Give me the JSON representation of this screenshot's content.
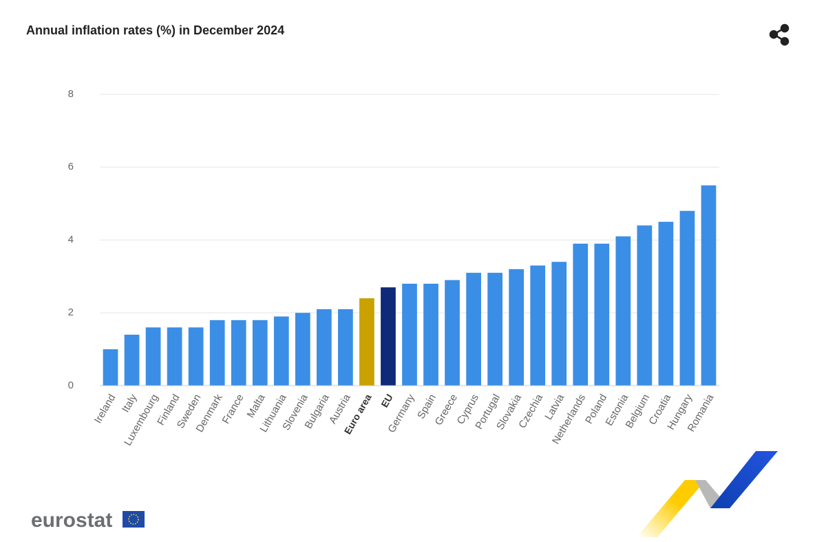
{
  "chart_data": {
    "type": "bar",
    "title": "Annual inflation rates (%) in December 2024",
    "categories": [
      "Ireland",
      "Italy",
      "Luxembourg",
      "Finland",
      "Sweden",
      "Denmark",
      "France",
      "Malta",
      "Lithuania",
      "Slovenia",
      "Bulgaria",
      "Austria",
      "Euro area",
      "EU",
      "Germany",
      "Spain",
      "Greece",
      "Cyprus",
      "Portugal",
      "Slovakia",
      "Czechia",
      "Latvia",
      "Netherlands",
      "Poland",
      "Estonia",
      "Belgium",
      "Croatia",
      "Hungary",
      "Romania"
    ],
    "values": [
      1.0,
      1.4,
      1.6,
      1.6,
      1.6,
      1.8,
      1.8,
      1.8,
      1.9,
      2.0,
      2.1,
      2.1,
      2.4,
      2.7,
      2.8,
      2.8,
      2.9,
      3.1,
      3.1,
      3.2,
      3.3,
      3.4,
      3.9,
      3.9,
      4.1,
      4.4,
      4.5,
      4.8,
      5.5
    ],
    "color": "#3a8ee6",
    "colors": [
      "#3a8ee6",
      "#3a8ee6",
      "#3a8ee6",
      "#3a8ee6",
      "#3a8ee6",
      "#3a8ee6",
      "#3a8ee6",
      "#3a8ee6",
      "#3a8ee6",
      "#3a8ee6",
      "#3a8ee6",
      "#3a8ee6",
      "#c9a100",
      "#0e2a78",
      "#3a8ee6",
      "#3a8ee6",
      "#3a8ee6",
      "#3a8ee6",
      "#3a8ee6",
      "#3a8ee6",
      "#3a8ee6",
      "#3a8ee6",
      "#3a8ee6",
      "#3a8ee6",
      "#3a8ee6",
      "#3a8ee6",
      "#3a8ee6",
      "#3a8ee6",
      "#3a8ee6"
    ],
    "ylim": [
      0,
      8
    ],
    "yticks": [
      0,
      2,
      4,
      6,
      8
    ],
    "grid": true
  },
  "logo": "eurostat"
}
